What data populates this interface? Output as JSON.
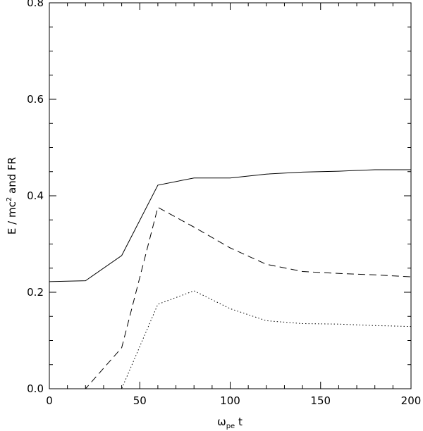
{
  "chart_data": {
    "type": "line",
    "xlabel": {
      "symbol": "ω",
      "subscript": "pe",
      "suffix": " t"
    },
    "ylabel": {
      "prefix": "E / mc",
      "superscript": "2",
      "suffix": " and FR"
    },
    "xlim": [
      0,
      200
    ],
    "ylim": [
      0,
      0.8
    ],
    "xticks": [
      0,
      50,
      100,
      150,
      200
    ],
    "ytick_labels": [
      "0.0",
      "0.2",
      "0.4",
      "0.6",
      "0.8"
    ],
    "yticks": [
      0,
      0.2,
      0.4,
      0.6,
      0.8
    ],
    "grid": false,
    "legend": "none",
    "series": [
      {
        "style": "solid",
        "x": [
          0,
          20,
          40,
          60,
          80,
          100,
          120,
          140,
          160,
          180,
          200
        ],
        "y": [
          0.222,
          0.224,
          0.276,
          0.422,
          0.437,
          0.437,
          0.445,
          0.449,
          0.451,
          0.454,
          0.454
        ]
      },
      {
        "style": "dashed",
        "x": [
          0,
          20,
          40,
          60,
          80,
          100,
          120,
          140,
          160,
          180,
          200
        ],
        "y": [
          0.0,
          0.0,
          0.085,
          0.376,
          0.335,
          0.292,
          0.258,
          0.243,
          0.239,
          0.236,
          0.232
        ]
      },
      {
        "style": "dotted",
        "x": [
          0,
          20,
          40,
          60,
          80,
          100,
          120,
          140,
          160,
          180,
          200
        ],
        "y": [
          0.0,
          0.0,
          0.0,
          0.175,
          0.203,
          0.166,
          0.141,
          0.135,
          0.134,
          0.131,
          0.129
        ]
      }
    ]
  }
}
